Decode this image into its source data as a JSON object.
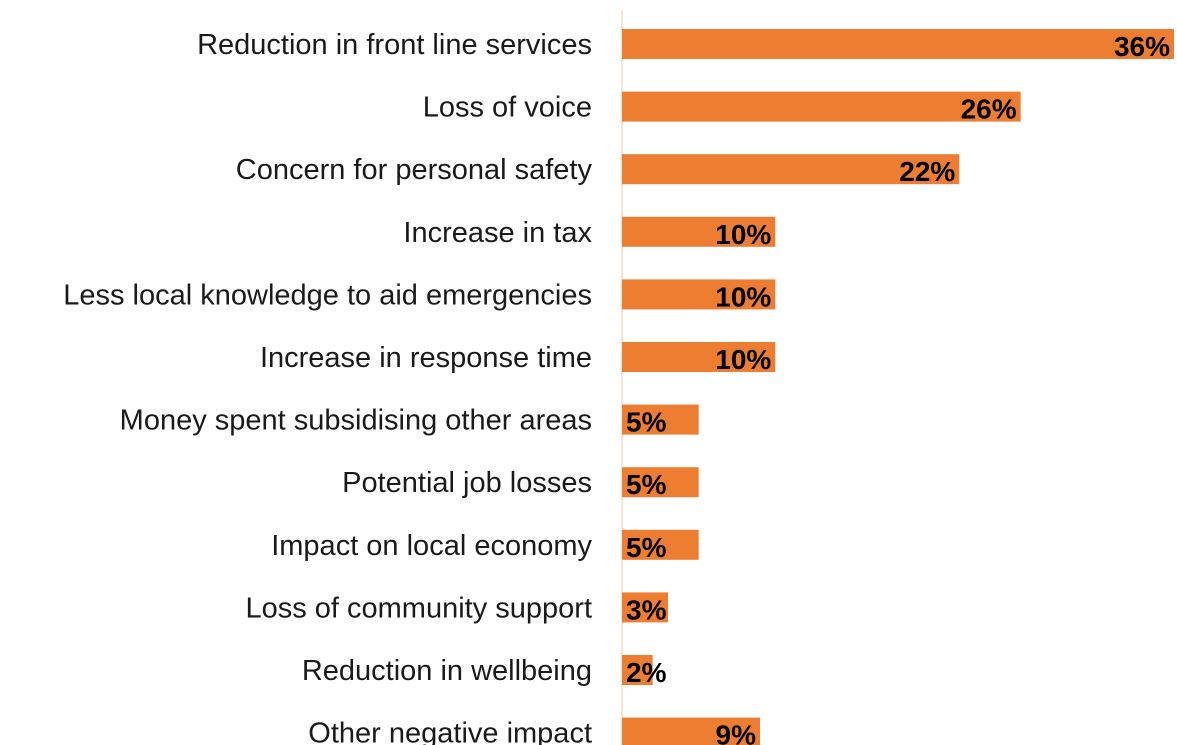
{
  "chart_data": {
    "type": "bar",
    "orientation": "horizontal",
    "categories": [
      "Reduction in front line services",
      "Loss of voice",
      "Concern for personal safety",
      "Increase in tax",
      "Less local knowledge to aid emergencies",
      "Increase in response time",
      "Money spent subsidising other areas",
      "Potential job losses",
      "Impact on local economy",
      "Loss of community support",
      "Reduction in wellbeing",
      "Other negative impact"
    ],
    "values": [
      36,
      26,
      22,
      10,
      10,
      10,
      5,
      5,
      5,
      3,
      2,
      9
    ],
    "value_labels": [
      "36%",
      "26%",
      "22%",
      "10%",
      "10%",
      "10%",
      "5%",
      "5%",
      "5%",
      "3%",
      "2%",
      "9%"
    ],
    "xlim": [
      0,
      36
    ],
    "grid": false,
    "legend": "none",
    "colors": {
      "bar": "#ED7D31",
      "axis": "#FBE3D0",
      "label": "#1a1a1a"
    }
  }
}
